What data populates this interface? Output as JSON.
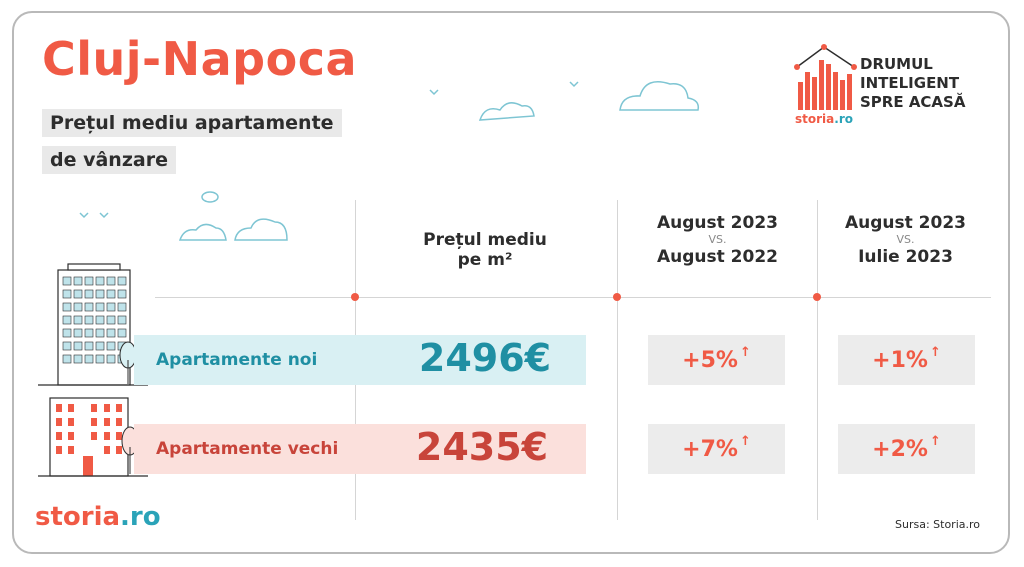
{
  "title": "Cluj-Napoca",
  "subtitle_line1": "Prețul mediu apartamente",
  "subtitle_line2": "de vânzare",
  "logo": {
    "line1": "DRUMUL",
    "line2": "INTELIGENT",
    "line3": "SPRE ACASĂ",
    "brand_main": "storia",
    "brand_suffix": ".ro"
  },
  "headers": {
    "price": {
      "line1": "Prețul mediu",
      "line2": "pe m²"
    },
    "compare1": {
      "top": "August 2023",
      "vs": "VS.",
      "bottom": "August 2022"
    },
    "compare2": {
      "top": "August 2023",
      "vs": "VS.",
      "bottom": "Iulie 2023"
    }
  },
  "rows": [
    {
      "label": "Apartamente noi",
      "price": "2496€",
      "change_yoy": "+5%",
      "change_mom": "+1%",
      "color": "#1f8fa3"
    },
    {
      "label": "Apartamente vechi",
      "price": "2435€",
      "change_yoy": "+7%",
      "change_mom": "+2%",
      "color": "#c8443a"
    }
  ],
  "arrow_glyph": "↑",
  "footer": {
    "brand_main": "storia",
    "brand_suffix": ".ro",
    "source": "Sursa: Storia.ro"
  },
  "colors": {
    "accent": "#f05a45",
    "teal": "#2aa3b8",
    "dark": "#2d2d2d"
  }
}
